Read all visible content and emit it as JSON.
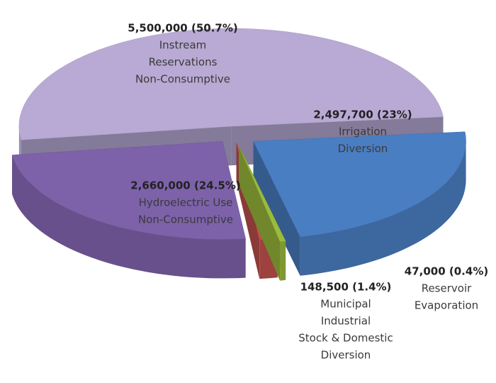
{
  "chart_data": {
    "type": "pie3d",
    "categories": [
      [
        "Instream",
        "Reservations",
        "Non-Consumptive"
      ],
      [
        "Irrigation",
        "Diversion"
      ],
      [
        "Reservoir",
        "Evaporation"
      ],
      [
        "Municipal",
        "Industrial",
        "Stock & Domestic",
        "Diversion"
      ],
      [
        "Hydroelectric Use",
        "Non-Consumptive"
      ]
    ],
    "values": [
      5500000,
      2497700,
      47000,
      148500,
      2660000
    ],
    "value_labels": [
      "5,500,000 (50.7%)",
      "2,497,700 (23%)",
      "47,000 (0.4%)",
      "148,500 (1.4%)",
      "2,660,000 (24.5%)"
    ],
    "colors": [
      "#b8aad4",
      "#4a7ec2",
      "#9bbb3c",
      "#c0504d",
      "#7d62aa"
    ]
  }
}
